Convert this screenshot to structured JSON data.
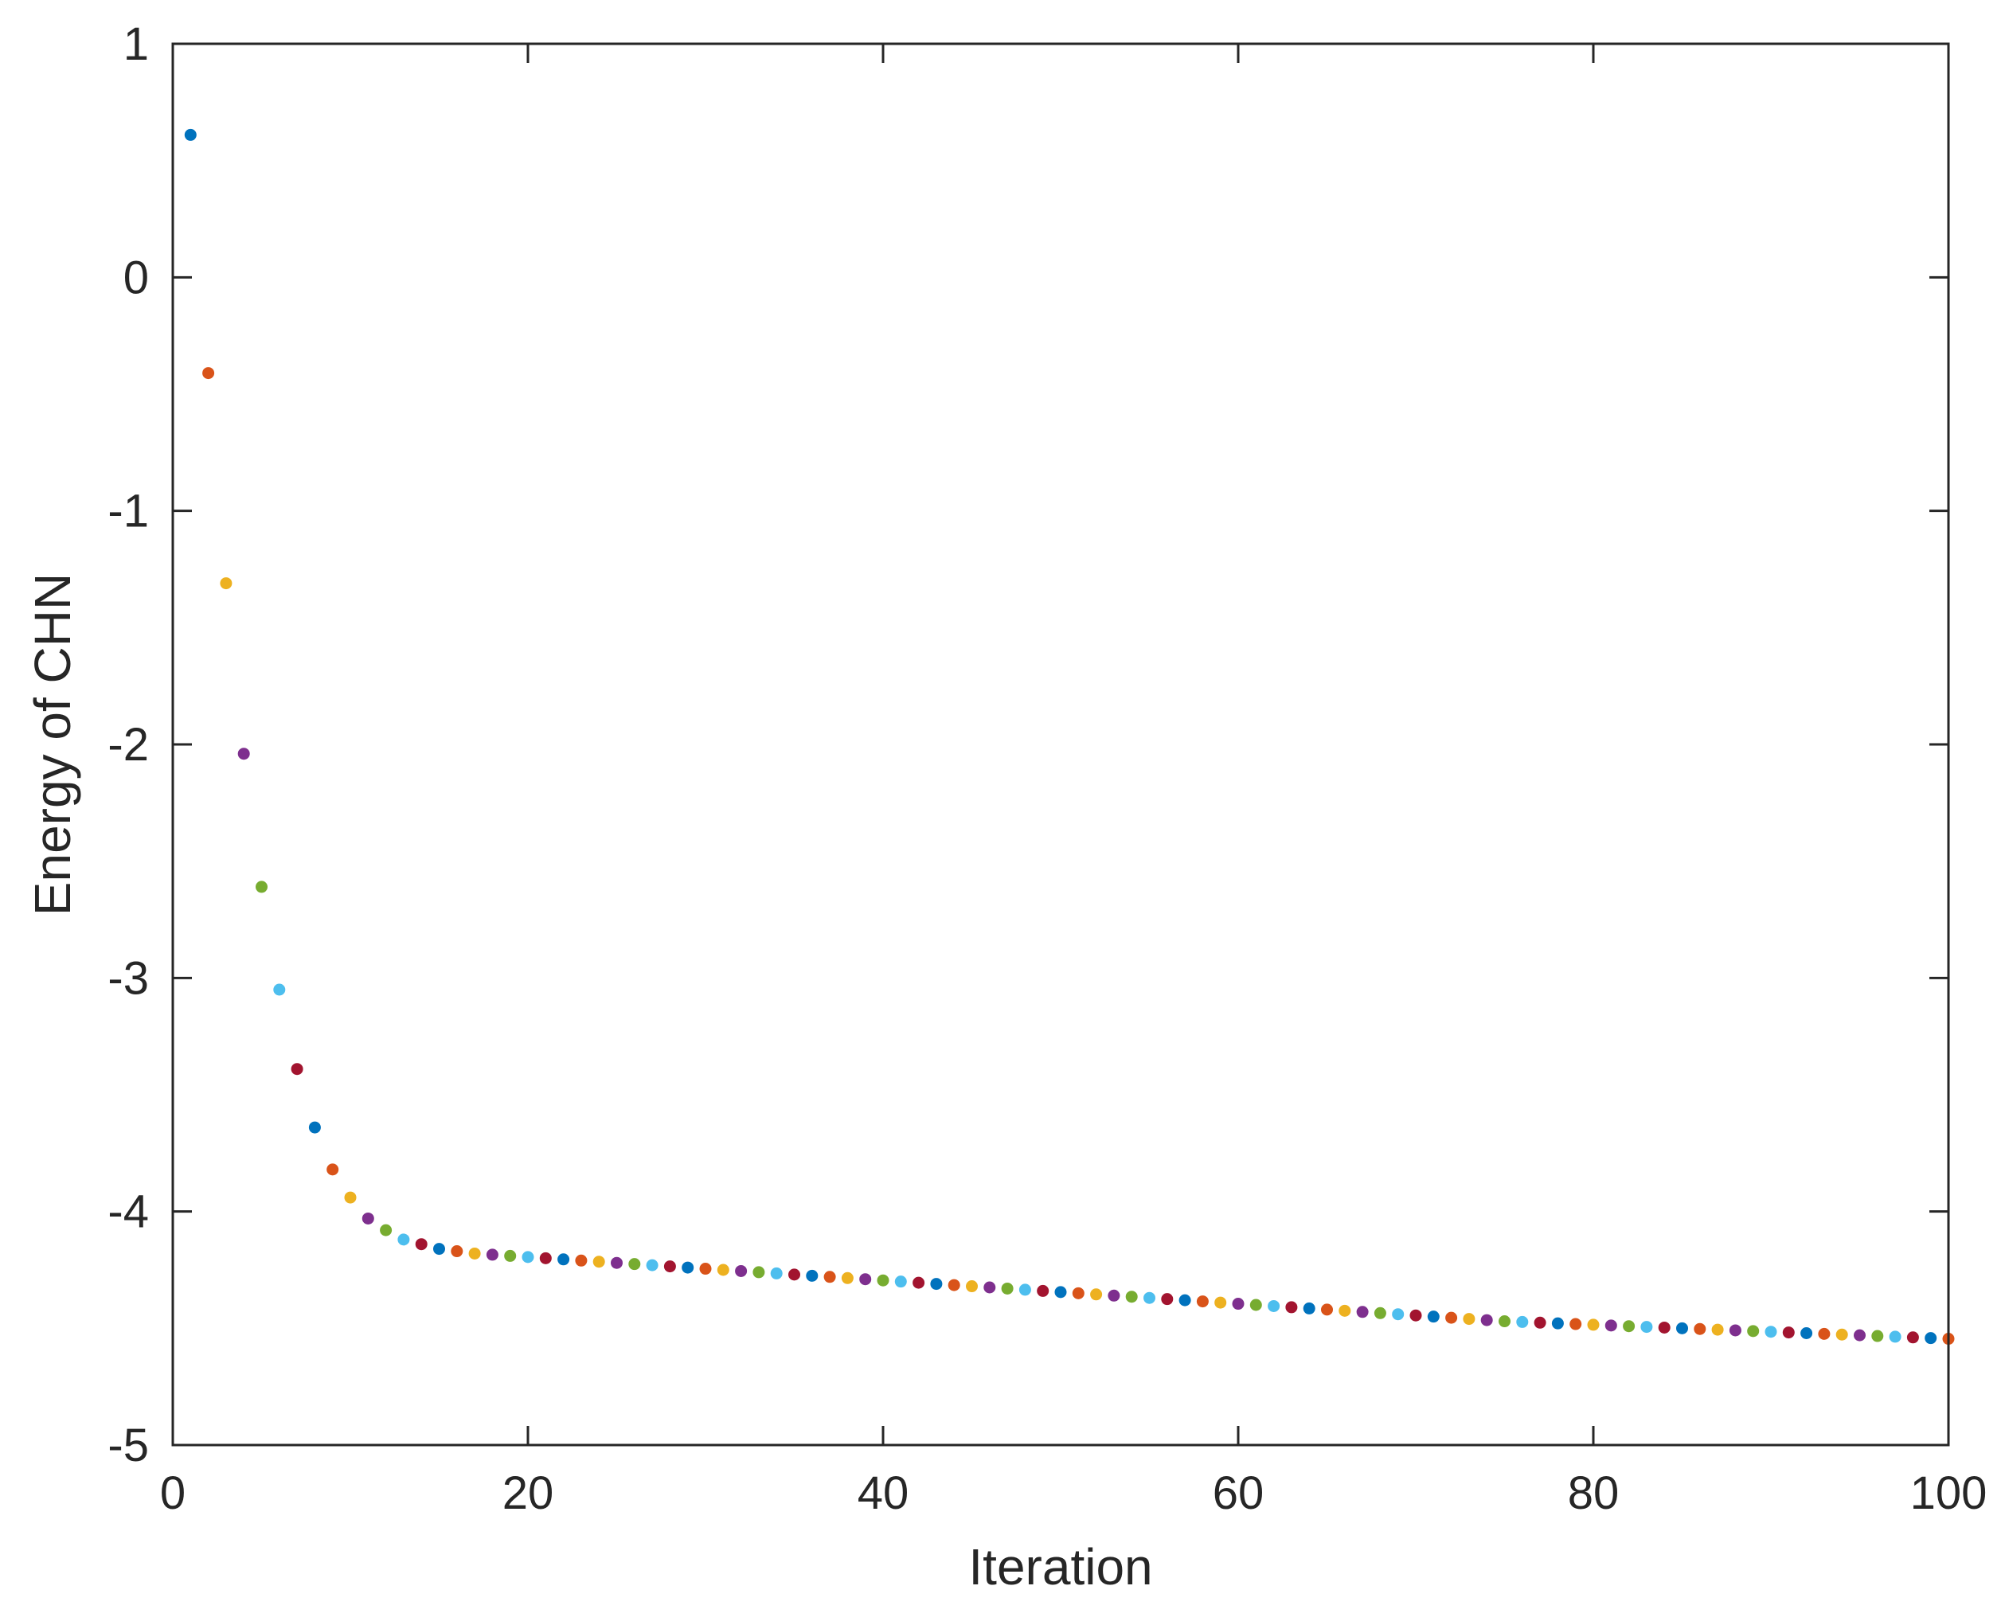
{
  "chart_data": {
    "type": "scatter",
    "title": "",
    "xlabel": "Iteration",
    "ylabel": "Energy of CHN",
    "xlim": [
      0,
      100
    ],
    "ylim": [
      -5,
      1
    ],
    "xticks": [
      0,
      20,
      40,
      60,
      80,
      100
    ],
    "xtick_labels": [
      "0",
      "20",
      "40",
      "60",
      "80",
      "100"
    ],
    "yticks": [
      -5,
      -4,
      -3,
      -2,
      -1,
      0,
      1
    ],
    "ytick_labels": [
      "-5",
      "-4",
      "-3",
      "-2",
      "-1",
      "0",
      "1"
    ],
    "grid": false,
    "legend": "none",
    "color_cycle": [
      "#0072BD",
      "#D95319",
      "#EDB120",
      "#7E2F8E",
      "#77AC30",
      "#4DBEEE",
      "#A2142F"
    ],
    "x": [
      1,
      2,
      3,
      4,
      5,
      6,
      7,
      8,
      9,
      10,
      11,
      12,
      13,
      14,
      15,
      16,
      17,
      18,
      19,
      20,
      21,
      22,
      23,
      24,
      25,
      26,
      27,
      28,
      29,
      30,
      31,
      32,
      33,
      34,
      35,
      36,
      37,
      38,
      39,
      40,
      41,
      42,
      43,
      44,
      45,
      46,
      47,
      48,
      49,
      50,
      51,
      52,
      53,
      54,
      55,
      56,
      57,
      58,
      59,
      60,
      61,
      62,
      63,
      64,
      65,
      66,
      67,
      68,
      69,
      70,
      71,
      72,
      73,
      74,
      75,
      76,
      77,
      78,
      79,
      80,
      81,
      82,
      83,
      84,
      85,
      86,
      87,
      88,
      89,
      90,
      91,
      92,
      93,
      94,
      95,
      96,
      97,
      98,
      99,
      100
    ],
    "y": [
      0.61,
      -0.41,
      -1.31,
      -2.04,
      -2.61,
      -3.05,
      -3.39,
      -3.64,
      -3.82,
      -3.94,
      -4.03,
      -4.08,
      -4.12,
      -4.14,
      -4.16,
      -4.17,
      -4.18,
      -4.185,
      -4.19,
      -4.195,
      -4.2,
      -4.205,
      -4.21,
      -4.215,
      -4.22,
      -4.225,
      -4.23,
      -4.235,
      -4.24,
      -4.245,
      -4.25,
      -4.255,
      -4.26,
      -4.265,
      -4.27,
      -4.275,
      -4.28,
      -4.285,
      -4.29,
      -4.295,
      -4.3,
      -4.305,
      -4.31,
      -4.315,
      -4.32,
      -4.325,
      -4.33,
      -4.335,
      -4.34,
      -4.345,
      -4.35,
      -4.355,
      -4.36,
      -4.365,
      -4.37,
      -4.375,
      -4.38,
      -4.385,
      -4.39,
      -4.395,
      -4.4,
      -4.405,
      -4.41,
      -4.415,
      -4.42,
      -4.425,
      -4.43,
      -4.435,
      -4.44,
      -4.445,
      -4.45,
      -4.455,
      -4.46,
      -4.465,
      -4.47,
      -4.473,
      -4.476,
      -4.479,
      -4.482,
      -4.485,
      -4.488,
      -4.491,
      -4.494,
      -4.497,
      -4.5,
      -4.503,
      -4.506,
      -4.509,
      -4.512,
      -4.515,
      -4.518,
      -4.521,
      -4.524,
      -4.527,
      -4.53,
      -4.533,
      -4.536,
      -4.539,
      -4.542,
      -4.545
    ]
  }
}
